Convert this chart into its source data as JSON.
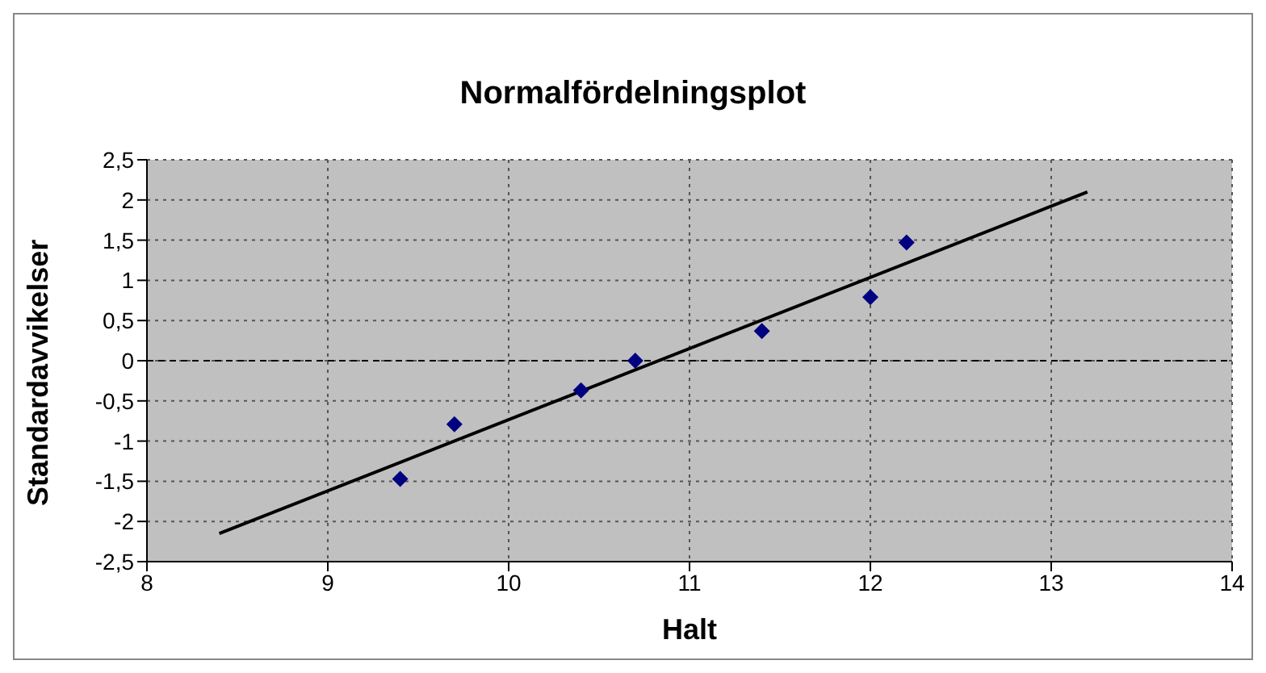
{
  "chart_data": {
    "type": "scatter",
    "title": "Normalfördelningsplot",
    "xlabel": "Halt",
    "ylabel": "Standardavvikelser",
    "series": [
      {
        "color": "#000080",
        "marker": "diamond",
        "x": [
          9.4,
          9.7,
          10.4,
          10.7,
          11.4,
          12.0,
          12.2
        ],
        "values": [
          -1.47,
          -0.79,
          -0.37,
          0,
          0.37,
          0.79,
          1.47
        ]
      },
      {
        "type": "line",
        "color": "#000000",
        "marker": "none",
        "line_style": "solid",
        "x": [
          8.4,
          13.2
        ],
        "values": [
          -2.15,
          2.1
        ]
      }
    ],
    "xlim": [
      8,
      14
    ],
    "xticks": [
      8,
      9,
      10,
      11,
      12,
      13,
      14
    ],
    "ylim": [
      -2.5,
      2.5
    ],
    "yticks": [
      {
        "value": -2.5,
        "label": "-2,5"
      },
      -2,
      {
        "value": -1.5,
        "label": "-1,5"
      },
      -1,
      {
        "value": -0.5,
        "label": "-0,5"
      },
      0,
      {
        "value": 0.5,
        "label": "0,5"
      },
      1,
      {
        "value": 1.5,
        "label": "1,5"
      },
      2,
      {
        "value": 2.5,
        "label": "2,5"
      }
    ],
    "grid": true,
    "ref_lines": [
      {
        "axis": "y",
        "value": 0,
        "color": "#000000",
        "line_style": "dashed"
      }
    ]
  }
}
